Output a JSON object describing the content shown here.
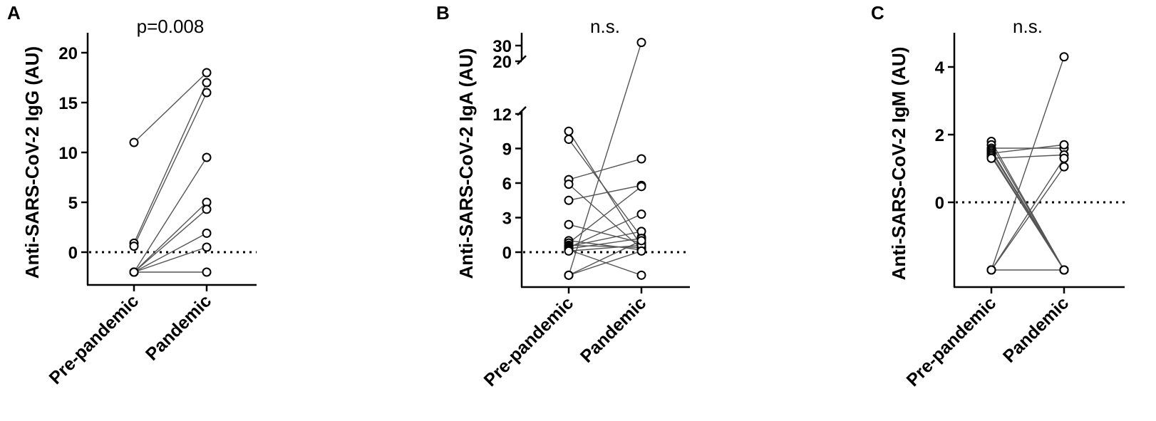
{
  "chart_data": [
    {
      "type": "scatter",
      "panel_label": "A",
      "annotation": "p=0.008",
      "ylabel": "Anti-SARS-CoV-2 IgG (AU)",
      "categories": [
        "Pre-pandemic",
        "Pandemic"
      ],
      "y_ticks": [
        0,
        5,
        10,
        15,
        20
      ],
      "ylim": [
        -3,
        20
      ],
      "reference_line": 0,
      "pairs": [
        [
          11.0,
          18.0
        ],
        [
          0.9,
          17.0
        ],
        [
          0.6,
          16.0
        ],
        [
          -2.0,
          9.5
        ],
        [
          -2.0,
          5.0
        ],
        [
          -2.0,
          4.3
        ],
        [
          -2.0,
          1.9
        ],
        [
          -2.0,
          0.5
        ],
        [
          -2.0,
          -2.0
        ]
      ]
    },
    {
      "type": "scatter",
      "panel_label": "B",
      "annotation": "n.s.",
      "ylabel": "Anti-SARS-CoV-2 IgA (AU)",
      "categories": [
        "Pre-pandemic",
        "Pandemic"
      ],
      "y_ticks": [
        0,
        3,
        6,
        9,
        12,
        20,
        30
      ],
      "ylim": [
        -2.5,
        35
      ],
      "axis_break": [
        12.5,
        19
      ],
      "reference_line": 0,
      "pairs": [
        [
          10.5,
          0.5
        ],
        [
          9.8,
          1.3
        ],
        [
          6.3,
          8.1
        ],
        [
          5.9,
          0.3
        ],
        [
          4.5,
          5.8
        ],
        [
          2.4,
          0.8
        ],
        [
          1.0,
          0.2
        ],
        [
          0.8,
          5.7
        ],
        [
          0.6,
          0.4
        ],
        [
          0.5,
          1.8
        ],
        [
          0.4,
          3.3
        ],
        [
          0.3,
          1.2
        ],
        [
          0.2,
          -2.0
        ],
        [
          0.1,
          0.6
        ],
        [
          -2.0,
          32.0
        ],
        [
          -2.0,
          1.0
        ],
        [
          -2.0,
          0.1
        ]
      ]
    },
    {
      "type": "scatter",
      "panel_label": "C",
      "annotation": "n.s.",
      "ylabel": "Anti-SARS-CoV-2 IgM (AU)",
      "categories": [
        "Pre-pandemic",
        "Pandemic"
      ],
      "y_ticks": [
        0,
        2,
        4
      ],
      "ylim": [
        -2.5,
        5
      ],
      "reference_line": 0,
      "pairs": [
        [
          1.8,
          -2.0
        ],
        [
          1.7,
          -2.0
        ],
        [
          1.6,
          1.6
        ],
        [
          1.55,
          -2.0
        ],
        [
          1.5,
          -2.0
        ],
        [
          1.45,
          1.7
        ],
        [
          1.4,
          -2.0
        ],
        [
          1.35,
          -2.0
        ],
        [
          1.3,
          1.4
        ],
        [
          -2.0,
          4.3
        ],
        [
          -2.0,
          1.3
        ],
        [
          -2.0,
          1.05
        ],
        [
          -2.0,
          -2.0
        ]
      ]
    }
  ]
}
